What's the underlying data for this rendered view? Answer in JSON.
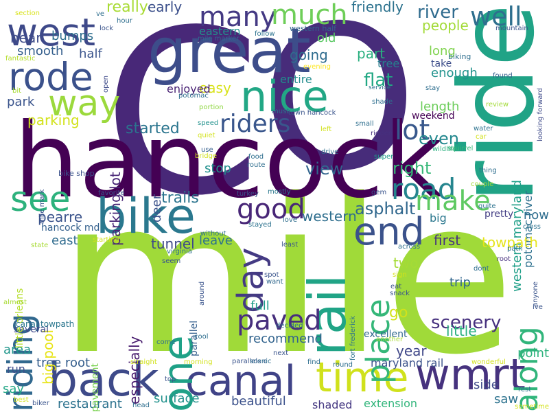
{
  "words": [
    {
      "text": "C",
      "color": "#482878"
    },
    {
      "text": "O",
      "color": "#472c7a"
    },
    {
      "text": "mile",
      "color": "#a0da39"
    },
    {
      "text": "hancock",
      "color": "#440154"
    },
    {
      "text": "ride",
      "color": "#20a386"
    },
    {
      "text": "great",
      "color": "#3d4d8a"
    },
    {
      "text": "bike",
      "color": "#2a788e"
    },
    {
      "text": "back",
      "color": "#3e4a89"
    },
    {
      "text": "canal",
      "color": "#404387"
    },
    {
      "text": "time",
      "color": "#d0e11c"
    },
    {
      "text": "wmrt",
      "color": "#46327e"
    },
    {
      "text": "nice",
      "color": "#22a785"
    },
    {
      "text": "west",
      "color": "#3e4989"
    },
    {
      "text": "rode",
      "color": "#3b518b"
    },
    {
      "text": "way",
      "color": "#9bd93c"
    },
    {
      "text": "many",
      "color": "#443983"
    },
    {
      "text": "much",
      "color": "#6ece58"
    },
    {
      "text": "well",
      "color": "#2e6f8e"
    },
    {
      "text": "see",
      "color": "#2db27d"
    },
    {
      "text": "day",
      "color": "#443a83"
    },
    {
      "text": "rail",
      "color": "#20a486"
    },
    {
      "text": "end",
      "color": "#3b528b"
    },
    {
      "text": "one",
      "color": "#1fa187"
    },
    {
      "text": "riding",
      "color": "#31688e"
    },
    {
      "text": "good",
      "color": "#482677"
    },
    {
      "text": "paved",
      "color": "#472f7d"
    },
    {
      "text": "road",
      "color": "#25858e"
    },
    {
      "text": "make",
      "color": "#5ec962"
    },
    {
      "text": "lot",
      "color": "#38588c"
    },
    {
      "text": "riders",
      "color": "#39568c"
    },
    {
      "text": "place",
      "color": "#35b779"
    },
    {
      "text": "along",
      "color": "#31b57b"
    },
    {
      "text": "river",
      "color": "#2f6b8e"
    },
    {
      "text": "friendly",
      "color": "#2c728e"
    },
    {
      "text": "people",
      "color": "#a2da37"
    },
    {
      "text": "eastern",
      "color": "#21918c"
    },
    {
      "text": "near",
      "color": "#3e4c8a"
    },
    {
      "text": "bumps",
      "color": "#2e6e8e"
    },
    {
      "text": "really",
      "color": "#a8db34"
    },
    {
      "text": "early",
      "color": "#3c508b"
    },
    {
      "text": "smooth",
      "color": "#355f8d"
    },
    {
      "text": "half",
      "color": "#3a548c"
    },
    {
      "text": "old",
      "color": "#5ac864"
    },
    {
      "text": "going",
      "color": "#2f6c8e"
    },
    {
      "text": "part",
      "color": "#29af7f"
    },
    {
      "text": "tree",
      "color": "#277f8e"
    },
    {
      "text": "long",
      "color": "#7fd34e"
    },
    {
      "text": "take",
      "color": "#3d4e8a"
    },
    {
      "text": "enough",
      "color": "#20928c"
    },
    {
      "text": "flat",
      "color": "#22a884"
    },
    {
      "text": "entire",
      "color": "#228c8d"
    },
    {
      "text": "easy",
      "color": "#d8e219"
    },
    {
      "text": "enjoyed",
      "color": "#482173"
    },
    {
      "text": "park",
      "color": "#3a548c"
    },
    {
      "text": "parking",
      "color": "#d2e21b"
    },
    {
      "text": "parking lot",
      "color": "#482576"
    },
    {
      "text": "started",
      "color": "#2b758e"
    },
    {
      "text": "weekend",
      "color": "#440154"
    },
    {
      "text": "length",
      "color": "#6ccd5a"
    },
    {
      "text": "even",
      "color": "#23888e"
    },
    {
      "text": "western maryland",
      "color": "#1f9f88"
    },
    {
      "text": "potomac river",
      "color": "#2d708e"
    },
    {
      "text": "view",
      "color": "#32658e"
    },
    {
      "text": "right",
      "color": "#37b878"
    },
    {
      "text": "stop",
      "color": "#21908d"
    },
    {
      "text": "trails",
      "color": "#2b748e"
    },
    {
      "text": "deer",
      "color": "#3b528b"
    },
    {
      "text": "pearre",
      "color": "#3a538b"
    },
    {
      "text": "western",
      "color": "#2e6e8e"
    },
    {
      "text": "asphalt",
      "color": "#30678d"
    },
    {
      "text": "big",
      "color": "#2a778e"
    },
    {
      "text": "now",
      "color": "#2e6d8e"
    },
    {
      "text": "pretty",
      "color": "#433d84"
    },
    {
      "text": "east",
      "color": "#2f6b8e"
    },
    {
      "text": "tunnel",
      "color": "#3e4a89"
    },
    {
      "text": "leave",
      "color": "#2c718e"
    },
    {
      "text": "first",
      "color": "#46327e"
    },
    {
      "text": "towpath",
      "color": "#e5e419"
    },
    {
      "text": "two",
      "color": "#a5db36"
    },
    {
      "text": "trip",
      "color": "#31668e"
    },
    {
      "text": "scenery",
      "color": "#46307e"
    },
    {
      "text": "little",
      "color": "#29af7f"
    },
    {
      "text": "full",
      "color": "#1f9e89"
    },
    {
      "text": "go",
      "color": "#d2e21b"
    },
    {
      "text": "especially",
      "color": "#481c6e"
    },
    {
      "text": "recommend",
      "color": "#32648e"
    },
    {
      "text": "year",
      "color": "#3f4788"
    },
    {
      "text": "area",
      "color": "#1f968b"
    },
    {
      "text": "tree root",
      "color": "#355e8d"
    },
    {
      "text": "run",
      "color": "#3d4d8a"
    },
    {
      "text": "say",
      "color": "#21a685"
    },
    {
      "text": "restaurant",
      "color": "#2c728e"
    },
    {
      "text": "surface",
      "color": "#21918c"
    },
    {
      "text": "beautiful",
      "color": "#3b518b"
    },
    {
      "text": "shaded",
      "color": "#453882"
    },
    {
      "text": "extension",
      "color": "#31b57b"
    },
    {
      "text": "side",
      "color": "#3e4989"
    },
    {
      "text": "saw",
      "color": "#2c728e"
    },
    {
      "text": "point",
      "color": "#2db27d"
    },
    {
      "text": "maryland rail",
      "color": "#3b528b"
    },
    {
      "text": "excellent",
      "color": "#31688e"
    },
    {
      "text": "big pool",
      "color": "#e7e419"
    },
    {
      "text": "several",
      "color": "#3f4889"
    },
    {
      "text": "pavement",
      "color": "#7ad151"
    },
    {
      "text": "parallel",
      "color": "#355f8d"
    },
    {
      "text": "little orleans",
      "color": "#b5de2b"
    },
    {
      "text": "hancock md",
      "color": "#34608d"
    },
    {
      "text": "canal towpath",
      "color": "#2a768e"
    },
    {
      "text": "bike shop",
      "color": "#3b518b"
    },
    {
      "text": "mile mark",
      "color": "#3b518b"
    },
    {
      "text": "western half",
      "color": "#33628d"
    },
    {
      "text": "mile marker",
      "color": "#31688e"
    },
    {
      "text": "follow",
      "color": "#2c738e"
    },
    {
      "text": "section",
      "color": "#d8e219"
    },
    {
      "text": "ve",
      "color": "#2e6e8e"
    },
    {
      "text": "hour",
      "color": "#2e6e8e"
    },
    {
      "text": "lock",
      "color": "#3a548c"
    },
    {
      "text": "fantastic",
      "color": "#b5de2b"
    },
    {
      "text": "open",
      "color": "#3e4a89"
    },
    {
      "text": "evening",
      "color": "#fde725"
    },
    {
      "text": "mountain",
      "color": "#3a548c"
    },
    {
      "text": "looking forward",
      "color": "#3e4a89"
    },
    {
      "text": "biking",
      "color": "#2e6e8e"
    },
    {
      "text": "found",
      "color": "#355f8d"
    },
    {
      "text": "service",
      "color": "#2c728e"
    },
    {
      "text": "stay",
      "color": "#2e6e8e"
    },
    {
      "text": "potomac",
      "color": "#2e6e8e"
    },
    {
      "text": "portion",
      "color": "#90d743"
    },
    {
      "text": "must",
      "color": "#2c728e"
    },
    {
      "text": "town hancock",
      "color": "#3a548c"
    },
    {
      "text": "review",
      "color": "#a2da37"
    },
    {
      "text": "shade",
      "color": "#2e6e8e"
    },
    {
      "text": "small",
      "color": "#2e6e8e"
    },
    {
      "text": "left",
      "color": "#d2e21b"
    },
    {
      "text": "speed",
      "color": "#21918c"
    },
    {
      "text": "quiet",
      "color": "#d2e21b"
    },
    {
      "text": "ridden",
      "color": "#46307e"
    },
    {
      "text": "water",
      "color": "#2c728e"
    },
    {
      "text": "car",
      "color": "#d2e21b"
    },
    {
      "text": "bit",
      "color": "#a8db34"
    },
    {
      "text": "use",
      "color": "#355f8d"
    },
    {
      "text": "bridge",
      "color": "#d2e21b"
    },
    {
      "text": "food",
      "color": "#2e6e8e"
    },
    {
      "text": "route",
      "color": "#2e6e8e"
    },
    {
      "text": "drive",
      "color": "#2e6e8e"
    },
    {
      "text": "super",
      "color": "#1f9e89"
    },
    {
      "text": "wildlife",
      "color": "#29af7f"
    },
    {
      "text": "squirrel",
      "color": "#35b779"
    },
    {
      "text": "thing",
      "color": "#2e6e8e"
    },
    {
      "text": "couple",
      "color": "#a2da37"
    },
    {
      "text": "quite",
      "color": "#2c728e"
    },
    {
      "text": "gem",
      "color": "#3a548c"
    },
    {
      "text": "turkey",
      "color": "#3a548c"
    },
    {
      "text": "mostly",
      "color": "#2a788e"
    },
    {
      "text": "favorite",
      "color": "#3a548c"
    },
    {
      "text": "stayed",
      "color": "#2c728e"
    },
    {
      "text": "love",
      "color": "#2e6e8e"
    },
    {
      "text": "without",
      "color": "#2e6e8e"
    },
    {
      "text": "starting",
      "color": "#d2e21b"
    },
    {
      "text": "state",
      "color": "#a8db34"
    },
    {
      "text": "virginia",
      "color": "#2e6e8e"
    },
    {
      "text": "least",
      "color": "#3a548c"
    },
    {
      "text": "across",
      "color": "#2e6e8e"
    },
    {
      "text": "path",
      "color": "#2e6e8e"
    },
    {
      "text": "root",
      "color": "#46307e"
    },
    {
      "text": "seem",
      "color": "#3a548c"
    },
    {
      "text": "cross",
      "color": "#2c728e"
    },
    {
      "text": "spot",
      "color": "#3a548c"
    },
    {
      "text": "want",
      "color": "#31688e"
    },
    {
      "text": "sign",
      "color": "#d2e21b"
    },
    {
      "text": "around",
      "color": "#3a548c"
    },
    {
      "text": "eat",
      "color": "#3a548c"
    },
    {
      "text": "snack",
      "color": "#3a548c"
    },
    {
      "text": "anyone",
      "color": "#3a548c"
    },
    {
      "text": "ive",
      "color": "#3a548c"
    },
    {
      "text": "almost",
      "color": "#a8db34"
    },
    {
      "text": "dont",
      "color": "#2e6e8e"
    },
    {
      "text": "fort frederick",
      "color": "#2c728e"
    },
    {
      "text": "another",
      "color": "#a8db34"
    },
    {
      "text": "cool",
      "color": "#2e6e8e"
    },
    {
      "text": "decided",
      "color": "#2e6e8e"
    },
    {
      "text": "come",
      "color": "#2e6e8e"
    },
    {
      "text": "next",
      "color": "#3a548c"
    },
    {
      "text": "straight",
      "color": "#d2e21b"
    },
    {
      "text": "morning",
      "color": "#d2e21b"
    },
    {
      "text": "parallels c",
      "color": "#3a548c"
    },
    {
      "text": "scenic",
      "color": "#2e6e8e"
    },
    {
      "text": "find",
      "color": "#2e6e8e"
    },
    {
      "text": "round",
      "color": "#2e6e8e"
    },
    {
      "text": "wonderful",
      "color": "#d2e21b"
    },
    {
      "text": "top",
      "color": "#3a548c"
    },
    {
      "text": "rest",
      "color": "#2e6e8e"
    },
    {
      "text": "best",
      "color": "#d2e21b"
    },
    {
      "text": "biker",
      "color": "#3a548c"
    },
    {
      "text": "head",
      "color": "#2e6e8e"
    },
    {
      "text": "sometime",
      "color": "#d2e21b"
    }
  ]
}
